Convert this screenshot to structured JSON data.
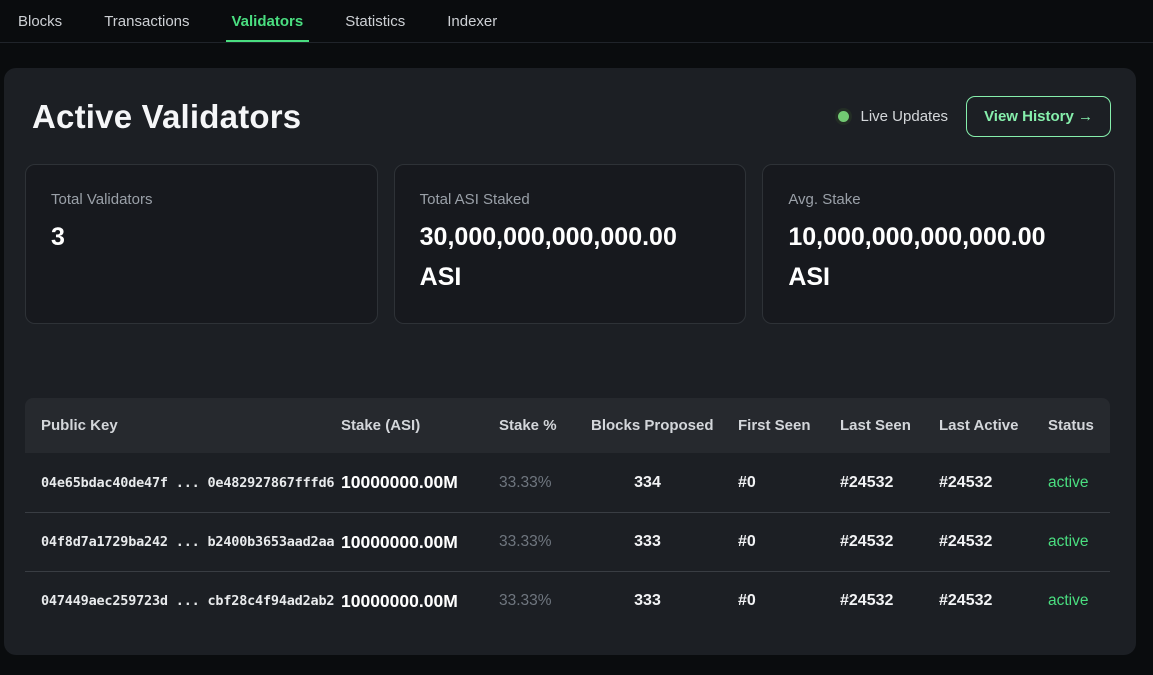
{
  "nav": {
    "items": [
      {
        "label": "Blocks",
        "active": false
      },
      {
        "label": "Transactions",
        "active": false
      },
      {
        "label": "Validators",
        "active": true
      },
      {
        "label": "Statistics",
        "active": false
      },
      {
        "label": "Indexer",
        "active": false
      }
    ]
  },
  "header": {
    "title": "Active Validators",
    "live_label": "Live Updates",
    "view_history_label": "View History →"
  },
  "stats": [
    {
      "label": "Total Validators",
      "value": "3"
    },
    {
      "label": "Total ASI Staked",
      "value": "30,000,000,000,000.00 ASI"
    },
    {
      "label": "Avg. Stake",
      "value": "10,000,000,000,000.00 ASI"
    }
  ],
  "table": {
    "columns": [
      "Public Key",
      "Stake (ASI)",
      "Stake %",
      "Blocks Proposed",
      "First Seen",
      "Last Seen",
      "Last Active",
      "Status"
    ],
    "rows": [
      {
        "public_key": "04e65bdac40de47f ... 0e482927867fffd6",
        "stake": "10000000.00M",
        "stake_pct": "33.33%",
        "blocks_proposed": "334",
        "first_seen": "#0",
        "last_seen": "#24532",
        "last_active": "#24532",
        "status": "active"
      },
      {
        "public_key": "04f8d7a1729ba242 ... b2400b3653aad2aa",
        "stake": "10000000.00M",
        "stake_pct": "33.33%",
        "blocks_proposed": "333",
        "first_seen": "#0",
        "last_seen": "#24532",
        "last_active": "#24532",
        "status": "active"
      },
      {
        "public_key": "047449aec259723d ... cbf28c4f94ad2ab2",
        "stake": "10000000.00M",
        "stake_pct": "33.33%",
        "blocks_proposed": "333",
        "first_seen": "#0",
        "last_seen": "#24532",
        "last_active": "#24532",
        "status": "active"
      }
    ]
  },
  "colors": {
    "accent_green": "#4ade80",
    "button_green": "#86efac",
    "background": "#0a0c0e",
    "panel": "#1c1f24",
    "card_border": "#2e3237"
  }
}
